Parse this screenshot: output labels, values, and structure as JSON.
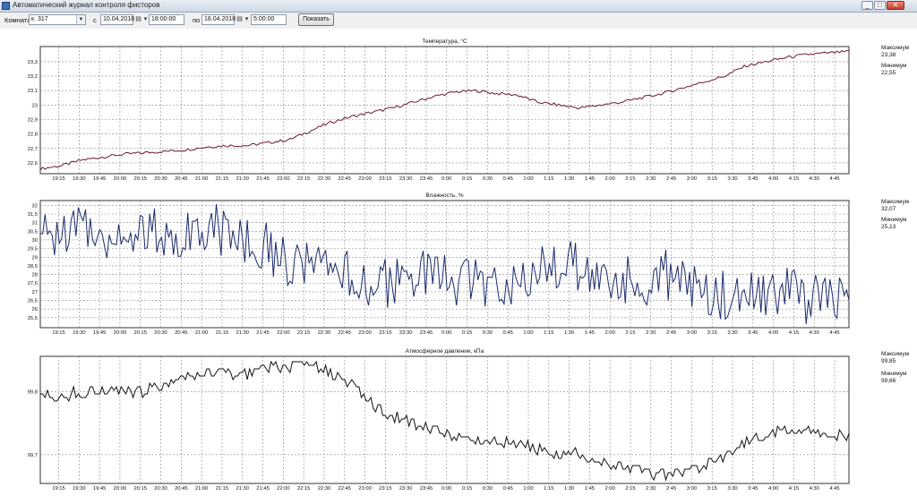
{
  "window": {
    "title": "Автоматический журнал контроля фисторов",
    "buttons": {
      "minimize": "_",
      "maximize": "□",
      "close": "✕"
    }
  },
  "toolbar": {
    "room_label": "Комната",
    "room_value": "к. 317",
    "from_label": "с",
    "from_date": "10.04.2018",
    "from_time": "18:00:00",
    "to_label": "по",
    "to_date": "18.04.2018",
    "to_time": "5:00:00",
    "show_button": "Показать"
  },
  "icons": {
    "calendar": "calendar-icon",
    "dropdown": "chevron-down-icon"
  },
  "colors": {
    "temperature": "#6b1a2a",
    "humidity": "#1a2a6b",
    "pressure": "#111111",
    "grid": "#888888"
  },
  "x_ticks": [
    "19:15",
    "19:30",
    "19:45",
    "20:00",
    "20:15",
    "20:30",
    "20:45",
    "21:00",
    "21:15",
    "21:30",
    "21:45",
    "22:00",
    "22:15",
    "22:30",
    "22:45",
    "23:00",
    "23:15",
    "23:30",
    "23:45",
    "0:00",
    "0:15",
    "0:30",
    "0:45",
    "1:00",
    "1:15",
    "1:30",
    "1:45",
    "2:00",
    "2:15",
    "2:30",
    "2:45",
    "3:00",
    "3:15",
    "3:30",
    "3:45",
    "4:00",
    "4:15",
    "4:30",
    "4:45"
  ],
  "stats": {
    "temperature": {
      "max_label": "Максимум",
      "max_value": "23,38",
      "min_label": "Минимум",
      "min_value": "22,55"
    },
    "humidity": {
      "max_label": "Максимум",
      "max_value": "32,07",
      "min_label": "Минимум",
      "min_value": "25,13"
    },
    "pressure": {
      "max_label": "Максимум",
      "max_value": "99,85",
      "min_label": "Минимум",
      "min_value": "99,66"
    }
  },
  "chart_data": [
    {
      "type": "line",
      "title": "Температура, °С",
      "y_ticks": [
        "22,6",
        "22,7",
        "22,8",
        "22,9",
        "23",
        "23,1",
        "23,2",
        "23,3"
      ],
      "ylim": [
        22.55,
        23.38
      ],
      "grid": true,
      "series": [
        {
          "values": [
            22.56,
            22.58,
            22.62,
            22.64,
            22.66,
            22.67,
            22.68,
            22.69,
            22.71,
            22.72,
            22.72,
            22.74,
            22.76,
            22.82,
            22.88,
            22.92,
            22.95,
            22.98,
            23.02,
            23.06,
            23.09,
            23.1,
            23.08,
            23.07,
            23.02,
            23.0,
            22.98,
            23.0,
            23.02,
            23.05,
            23.08,
            23.12,
            23.16,
            23.2,
            23.27,
            23.3,
            23.33,
            23.35,
            23.36,
            23.37
          ]
        }
      ]
    },
    {
      "type": "line",
      "title": "Влажность, %",
      "y_ticks": [
        "25,5",
        "26",
        "26,5",
        "27",
        "27,5",
        "28",
        "28,5",
        "29",
        "29,5",
        "30",
        "30,5",
        "31",
        "31,5",
        "32"
      ],
      "ylim": [
        25.13,
        32.07
      ],
      "grid": true,
      "series": [
        {
          "values": [
            30.0,
            30.5,
            30.8,
            30.4,
            30.2,
            30.6,
            30.3,
            30.5,
            30.9,
            30.4,
            30.1,
            29.5,
            28.8,
            28.3,
            28.0,
            27.8,
            27.6,
            27.4,
            27.8,
            28.0,
            27.5,
            27.6,
            27.2,
            27.9,
            28.2,
            28.6,
            28.4,
            27.9,
            27.6,
            27.4,
            28.0,
            27.8,
            27.1,
            26.9,
            26.7,
            26.5,
            26.9,
            26.6,
            26.3,
            26.4
          ]
        }
      ]
    },
    {
      "type": "line",
      "title": "Атмосферное давление, кПа",
      "y_ticks": [
        "99,7",
        "99,8"
      ],
      "ylim": [
        99.66,
        99.85
      ],
      "grid": true,
      "series": [
        {
          "values": [
            99.8,
            99.79,
            99.8,
            99.8,
            99.8,
            99.8,
            99.81,
            99.82,
            99.83,
            99.83,
            99.83,
            99.84,
            99.84,
            99.85,
            99.83,
            99.81,
            99.78,
            99.76,
            99.75,
            99.74,
            99.73,
            99.72,
            99.72,
            99.72,
            99.71,
            99.7,
            99.7,
            99.69,
            99.68,
            99.67,
            99.67,
            99.67,
            99.68,
            99.7,
            99.72,
            99.73,
            99.74,
            99.74,
            99.73,
            99.73
          ]
        }
      ]
    }
  ]
}
